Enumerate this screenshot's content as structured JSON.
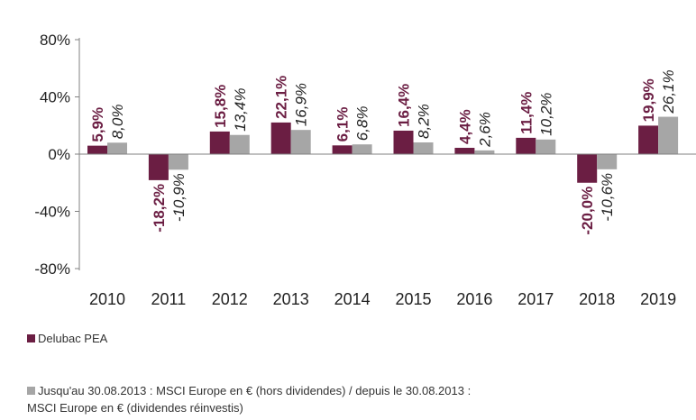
{
  "chart_data": {
    "type": "bar",
    "categories": [
      "2010",
      "2011",
      "2012",
      "2013",
      "2014",
      "2015",
      "2016",
      "2017",
      "2018",
      "2019"
    ],
    "series": [
      {
        "name": "Delubac PEA",
        "color": "#6b1e43",
        "values": [
          5.9,
          -18.2,
          15.8,
          22.1,
          6.1,
          16.4,
          4.4,
          11.4,
          -20.0,
          19.9
        ],
        "labels": [
          "5,9%",
          "-18,2%",
          "15,8%",
          "22,1%",
          "6,1%",
          "16,4%",
          "4,4%",
          "11,4%",
          "-20,0%",
          "19,9%"
        ]
      },
      {
        "name": "Jusqu'au 30.08.2013 : MSCI Europe en € (hors dividendes) / depuis le 30.08.2013 : MSCI Europe en € (dividendes réinvestis)",
        "name_line1": "Jusqu'au 30.08.2013 : MSCI Europe en € (hors dividendes) / depuis le 30.08.2013 :",
        "name_line2": "MSCI Europe en € (dividendes réinvestis)",
        "color": "#a6a6a6",
        "values": [
          8.0,
          -10.9,
          13.4,
          16.9,
          6.8,
          8.2,
          2.6,
          10.2,
          -10.6,
          26.1
        ],
        "labels": [
          "8,0%",
          "-10,9%",
          "13,4%",
          "16,9%",
          "6,8%",
          "8,2%",
          "2,6%",
          "10,2%",
          "-10,6%",
          "26,1%"
        ]
      }
    ],
    "yticks": [
      80,
      40,
      0,
      -40,
      -80
    ],
    "ytick_labels": [
      "80%",
      "40%",
      "0%",
      "-40%",
      "-80%"
    ],
    "ylim": [
      -80,
      80
    ],
    "grid": false,
    "legend_position": "bottom-left"
  }
}
